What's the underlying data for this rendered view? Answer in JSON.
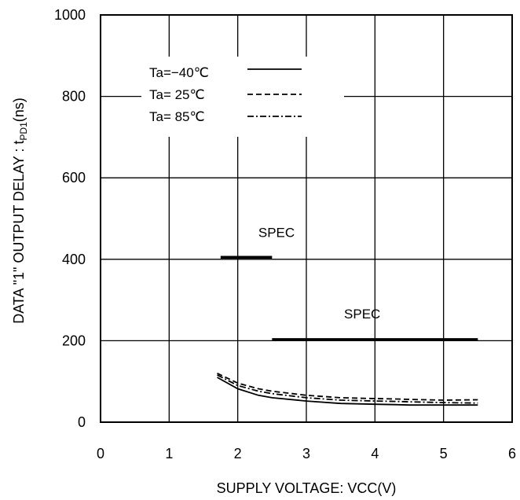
{
  "chart_data": {
    "type": "line",
    "xlabel": "SUPPLY VOLTAGE: VCC(V)",
    "ylabel": {
      "main": "DATA \"1\" OUTPUT DELAY : t",
      "subscript": "PD1",
      "unit": "(ns)"
    },
    "xlim": [
      0,
      6
    ],
    "ylim": [
      0,
      1000
    ],
    "xticks": [
      "0",
      "1",
      "2",
      "3",
      "4",
      "5",
      "6"
    ],
    "yticks": [
      "0",
      "200",
      "400",
      "600",
      "800",
      "1000"
    ],
    "grid": true,
    "legend_position": "top-left",
    "series": [
      {
        "name": "Ta=−40℃",
        "style": "solid",
        "x": [
          1.7,
          2.0,
          2.3,
          2.5,
          3.0,
          3.5,
          4.0,
          4.3,
          4.5,
          5.0,
          5.5
        ],
        "y": [
          110,
          82,
          66,
          60,
          52,
          46,
          44,
          43,
          42,
          42,
          42
        ]
      },
      {
        "name": "Ta= 25℃",
        "style": "dashed",
        "x": [
          1.7,
          2.0,
          2.3,
          2.5,
          3.0,
          3.5,
          4.0,
          4.3,
          4.5,
          5.0,
          5.5
        ],
        "y": [
          120,
          96,
          82,
          76,
          66,
          60,
          58,
          57,
          56,
          54,
          55
        ]
      },
      {
        "name": "Ta= 85℃",
        "style": "dashdot",
        "x": [
          1.7,
          2.0,
          2.3,
          2.5,
          3.0,
          3.5,
          4.0,
          4.3,
          4.5,
          5.0,
          5.5
        ],
        "y": [
          116,
          90,
          76,
          70,
          60,
          54,
          52,
          51,
          50,
          48,
          47
        ]
      }
    ],
    "annotations": [
      {
        "text": "SPEC",
        "x_range": [
          1.75,
          2.5
        ],
        "y": 405,
        "label_x": 2.3,
        "label_y": 455
      },
      {
        "text": "SPEC",
        "x_range": [
          2.5,
          5.5
        ],
        "y": 203,
        "label_x": 3.55,
        "label_y": 255
      }
    ]
  }
}
